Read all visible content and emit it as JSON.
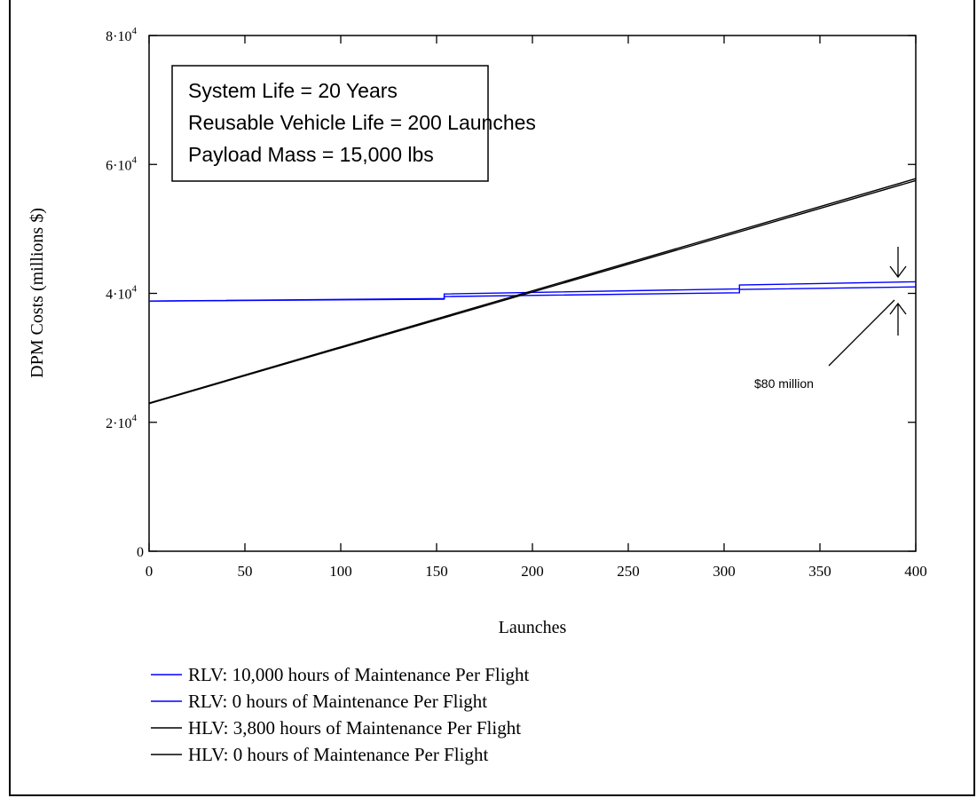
{
  "chart_data": {
    "type": "line",
    "xlabel": "Launches",
    "ylabel": "DPM Costs (millions $)",
    "xlim": [
      0,
      400
    ],
    "ylim": [
      0,
      80000
    ],
    "x_ticks": [
      "0",
      "50",
      "100",
      "150",
      "200",
      "250",
      "300",
      "350",
      "400"
    ],
    "y_ticks": [
      {
        "value": 0,
        "mantissa": "0",
        "exp": ""
      },
      {
        "value": 20000,
        "mantissa": "2·10",
        "exp": "4"
      },
      {
        "value": 40000,
        "mantissa": "4·10",
        "exp": "4"
      },
      {
        "value": 60000,
        "mantissa": "6·10",
        "exp": "4"
      },
      {
        "value": 80000,
        "mantissa": "8·10",
        "exp": "4"
      }
    ],
    "grid": false,
    "legend_position": "bottom",
    "info_box": [
      "System Life = 20 Years",
      "Reusable Vehicle Life = 200 Launches",
      "Payload Mass = 15,000 lbs"
    ],
    "annotation": "$80 million",
    "series": [
      {
        "name": "RLV: 10,000 hours of Maintenance Per Flight",
        "color": "#0000ff",
        "points": [
          [
            0,
            38800
          ],
          [
            154,
            39200
          ],
          [
            154,
            39900
          ],
          [
            308,
            40700
          ],
          [
            308,
            41300
          ],
          [
            400,
            41800
          ]
        ]
      },
      {
        "name": "RLV: 0 hours of Maintenance Per Flight",
        "color": "#0000ff",
        "points": [
          [
            0,
            38800
          ],
          [
            154,
            39100
          ],
          [
            154,
            39500
          ],
          [
            308,
            40100
          ],
          [
            308,
            40600
          ],
          [
            400,
            41000
          ]
        ]
      },
      {
        "name": "HLV: 3,800 hours of Maintenance Per Flight",
        "color": "#000000",
        "points": [
          [
            0,
            23000
          ],
          [
            400,
            57800
          ]
        ]
      },
      {
        "name": "HLV: 0 hours of Maintenance Per Flight",
        "color": "#000000",
        "points": [
          [
            0,
            22900
          ],
          [
            400,
            57500
          ]
        ]
      }
    ]
  }
}
